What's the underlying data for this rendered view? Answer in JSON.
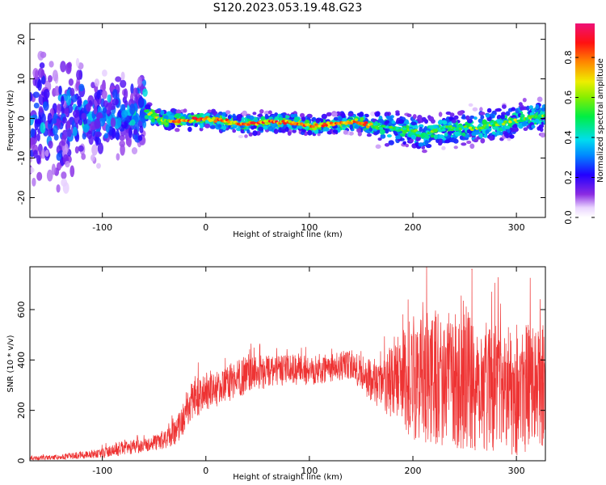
{
  "title": "S120.2023.053.19.48.G23",
  "chart_data": [
    {
      "type": "heatmap",
      "xlabel": "Height of straight line (km)",
      "ylabel": "Frequency (Hz)",
      "xlim": [
        -170,
        328
      ],
      "ylim": [
        -25,
        24
      ],
      "xticks": [
        -100,
        0,
        100,
        200,
        300
      ],
      "yticks": [
        -20,
        -10,
        0,
        10,
        20
      ],
      "colorbar": {
        "label": "Normalized spectral amplitude",
        "range": [
          0,
          0.97
        ],
        "ticks": [
          0.0,
          0.2,
          0.4,
          0.6,
          0.8
        ],
        "tick_labels": [
          "0.0",
          "0.2",
          "0.4",
          "0.6",
          "0.8"
        ]
      },
      "ridge_frequency": {
        "x": [
          -170,
          -130,
          -100,
          -80,
          -60,
          -50,
          -40,
          -20,
          0,
          20,
          40,
          60,
          80,
          100,
          120,
          140,
          150,
          160,
          180,
          200,
          210,
          220,
          240,
          260,
          280,
          300,
          320,
          328
        ],
        "y": [
          0,
          0,
          0,
          1,
          2,
          0.5,
          -0.5,
          -0.5,
          -0.2,
          -0.8,
          -1.5,
          -1,
          -1,
          -1.8,
          -1.5,
          -0.8,
          -1,
          -2,
          -2.5,
          -3,
          -4,
          -3,
          -2.5,
          -2.5,
          -1.5,
          -0.5,
          0.5,
          1
        ]
      }
    },
    {
      "type": "line",
      "xlabel": "Height of straight line (km)",
      "ylabel": "SNR (10 * v/v)",
      "xlim": [
        -170,
        328
      ],
      "ylim": [
        0,
        770
      ],
      "xticks": [
        -100,
        0,
        100,
        200,
        300
      ],
      "yticks": [
        0,
        200,
        400,
        600
      ],
      "series": [
        {
          "color": "#ee3333",
          "envelope": {
            "x": [
              -170,
              -140,
              -100,
              -80,
              -60,
              -40,
              -30,
              -20,
              -15,
              -10,
              0,
              20,
              30,
              50,
              80,
              100,
              120,
              140,
              150,
              160,
              170,
              180,
              190,
              200,
              220,
              240,
              260,
              280,
              300,
              320,
              328
            ],
            "mean": [
              10,
              15,
              30,
              50,
              60,
              80,
              110,
              180,
              230,
              250,
              270,
              300,
              330,
              350,
              360,
              360,
              370,
              380,
              350,
              320,
              300,
              300,
              320,
              330,
              330,
              320,
              310,
              300,
              290,
              300,
              300
            ],
            "spread": [
              8,
              10,
              20,
              30,
              25,
              35,
              50,
              70,
              80,
              80,
              70,
              70,
              80,
              70,
              60,
              60,
              60,
              60,
              70,
              90,
              100,
              150,
              200,
              250,
              270,
              270,
              280,
              260,
              270,
              250,
              240
            ]
          },
          "peak": {
            "x": 257,
            "y": 760
          }
        }
      ]
    }
  ]
}
